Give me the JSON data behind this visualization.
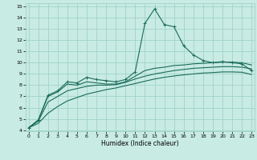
{
  "title": "",
  "xlabel": "Humidex (Indice chaleur)",
  "xlim": [
    0,
    23
  ],
  "ylim": [
    4,
    15
  ],
  "xticks": [
    0,
    1,
    2,
    3,
    4,
    5,
    6,
    7,
    8,
    9,
    10,
    11,
    12,
    13,
    14,
    15,
    16,
    17,
    18,
    19,
    20,
    21,
    22,
    23
  ],
  "yticks": [
    4,
    5,
    6,
    7,
    8,
    9,
    10,
    11,
    12,
    13,
    14,
    15
  ],
  "bg_color": "#c8ebe3",
  "grid_color": "#a0d4c8",
  "line_color": "#1a6b5a",
  "lines": [
    {
      "x": [
        0,
        1,
        2,
        3,
        4,
        5,
        6,
        7,
        8,
        9,
        10,
        11,
        12,
        13,
        14,
        15,
        16,
        17,
        18,
        19,
        20,
        21,
        22,
        23
      ],
      "y": [
        4.2,
        4.9,
        7.1,
        7.5,
        8.3,
        8.2,
        8.7,
        8.5,
        8.4,
        8.3,
        8.5,
        9.2,
        13.5,
        14.8,
        13.4,
        13.2,
        11.5,
        10.7,
        10.2,
        10.0,
        10.1,
        10.0,
        9.9,
        9.3
      ],
      "marker": true
    },
    {
      "x": [
        0,
        1,
        2,
        3,
        4,
        5,
        6,
        7,
        8,
        9,
        10,
        11,
        12,
        13,
        14,
        15,
        16,
        17,
        18,
        19,
        20,
        21,
        22,
        23
      ],
      "y": [
        4.2,
        4.9,
        7.0,
        7.4,
        8.1,
        8.0,
        8.3,
        8.2,
        8.1,
        8.1,
        8.3,
        8.8,
        9.3,
        9.5,
        9.6,
        9.75,
        9.8,
        9.9,
        9.95,
        10.0,
        10.05,
        10.05,
        10.0,
        9.8
      ],
      "marker": false
    },
    {
      "x": [
        0,
        1,
        2,
        3,
        4,
        5,
        6,
        7,
        8,
        9,
        10,
        11,
        12,
        13,
        14,
        15,
        16,
        17,
        18,
        19,
        20,
        21,
        22,
        23
      ],
      "y": [
        4.2,
        4.8,
        6.5,
        7.0,
        7.5,
        7.7,
        7.9,
        8.0,
        8.0,
        8.05,
        8.25,
        8.55,
        8.8,
        9.0,
        9.15,
        9.3,
        9.4,
        9.5,
        9.55,
        9.6,
        9.65,
        9.65,
        9.6,
        9.45
      ],
      "marker": false
    },
    {
      "x": [
        0,
        1,
        2,
        3,
        4,
        5,
        6,
        7,
        8,
        9,
        10,
        11,
        12,
        13,
        14,
        15,
        16,
        17,
        18,
        19,
        20,
        21,
        22,
        23
      ],
      "y": [
        4.2,
        4.6,
        5.5,
        6.1,
        6.6,
        6.9,
        7.2,
        7.4,
        7.6,
        7.75,
        7.95,
        8.15,
        8.35,
        8.55,
        8.7,
        8.82,
        8.92,
        9.0,
        9.08,
        9.12,
        9.18,
        9.18,
        9.15,
        8.95
      ],
      "marker": false
    }
  ]
}
